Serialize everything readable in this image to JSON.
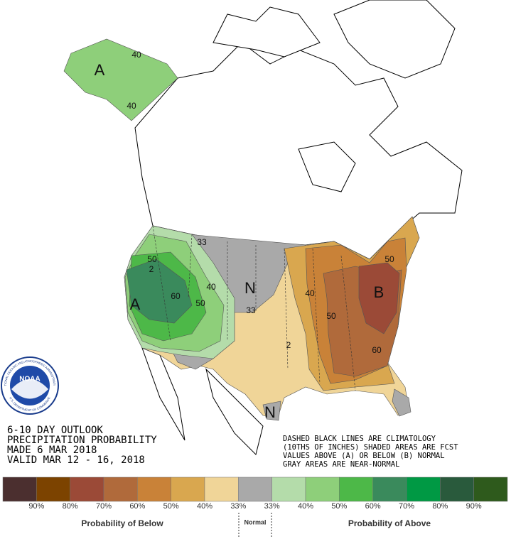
{
  "header": {
    "lines": [
      "6-10 DAY OUTLOOK",
      "PRECIPITATION PROBABILITY",
      "MADE  6 MAR 2018",
      "VALID  MAR 12 - 16, 2018"
    ]
  },
  "notes": [
    "DASHED BLACK LINES ARE CLIMATOLOGY",
    "(10THS OF INCHES) SHADED AREAS ARE FCST",
    "VALUES ABOVE (A) OR BELOW (B) NORMAL",
    "GRAY AREAS ARE NEAR-NORMAL"
  ],
  "logo": {
    "text": "NOAA",
    "ring_top": "NATIONAL OCEANIC AND ATMOSPHERIC ADMINISTRATION",
    "ring_bottom": "U.S. DEPARTMENT OF COMMERCE"
  },
  "map": {
    "labels": [
      "A",
      "40",
      "40",
      "33",
      "50",
      "2",
      "60",
      "40",
      "50",
      "A",
      "N",
      "33",
      "40",
      "50",
      "B",
      "50",
      "60",
      "N",
      "2"
    ]
  },
  "legend": {
    "colors": [
      "#4b2f2f",
      "#7c4300",
      "#9b4a37",
      "#b06a3b",
      "#c98238",
      "#d9a74f",
      "#f0d598",
      "#a9a9a9",
      "#b4dcaa",
      "#8ecf7a",
      "#4db848",
      "#3a8a5c",
      "#009944",
      "#295a3c",
      "#2e5a1c"
    ],
    "labels": [
      "90%",
      "80%",
      "70%",
      "60%",
      "50%",
      "40%",
      "33%",
      "33%",
      "40%",
      "50%",
      "60%",
      "70%",
      "80%",
      "90%"
    ],
    "below_title": "Probability of Below",
    "normal_title": "Normal",
    "above_title": "Probability of Above"
  }
}
